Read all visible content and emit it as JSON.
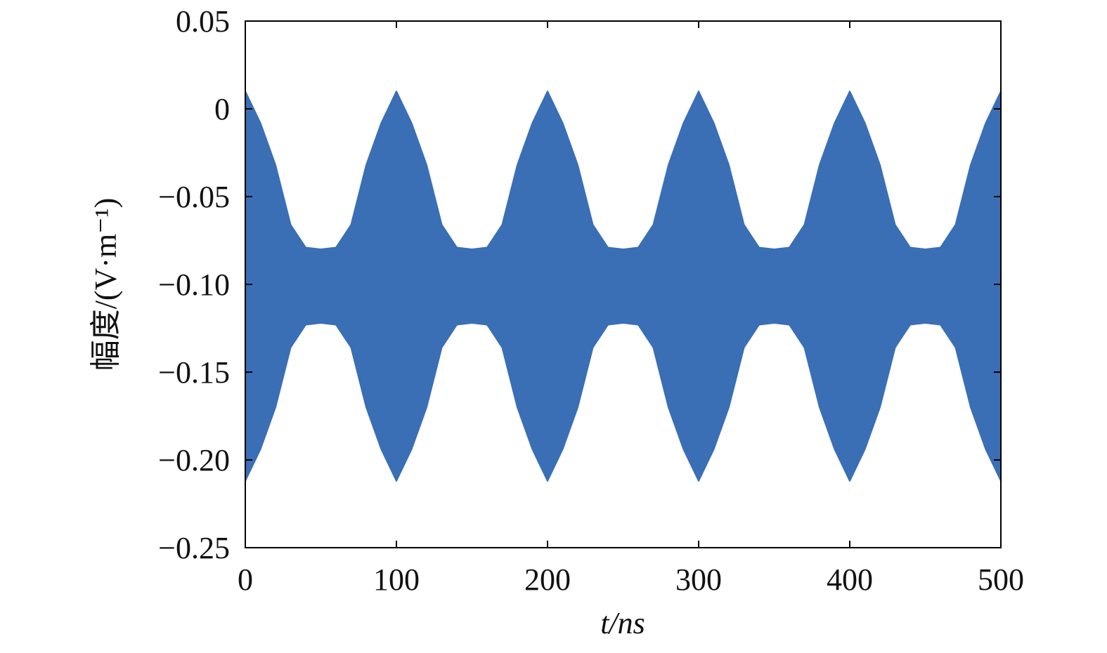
{
  "chart_data": {
    "type": "band",
    "x_label": "t/ns",
    "y_label": "幅度/(V·m⁻¹)",
    "color": "#3a6fb6",
    "x": [
      0,
      10,
      20,
      30,
      40,
      50,
      60,
      70,
      80,
      90,
      100,
      110,
      120,
      130,
      140,
      150,
      160,
      170,
      180,
      190,
      200,
      210,
      220,
      230,
      240,
      250,
      260,
      270,
      280,
      290,
      300,
      310,
      320,
      330,
      340,
      350,
      360,
      370,
      380,
      390,
      400,
      410,
      420,
      430,
      440,
      450,
      460,
      470,
      480,
      490,
      500
    ],
    "upper": [
      0.01,
      -0.008,
      -0.032,
      -0.066,
      -0.079,
      -0.08,
      -0.079,
      -0.066,
      -0.032,
      -0.008,
      0.01,
      -0.008,
      -0.032,
      -0.066,
      -0.079,
      -0.08,
      -0.079,
      -0.066,
      -0.032,
      -0.008,
      0.01,
      -0.008,
      -0.032,
      -0.066,
      -0.079,
      -0.08,
      -0.079,
      -0.066,
      -0.032,
      -0.008,
      0.01,
      -0.008,
      -0.032,
      -0.066,
      -0.079,
      -0.08,
      -0.079,
      -0.066,
      -0.032,
      -0.008,
      0.01,
      -0.008,
      -0.032,
      -0.066,
      -0.079,
      -0.08,
      -0.079,
      -0.066,
      -0.032,
      -0.008,
      0.01
    ],
    "lower": [
      -0.212,
      -0.194,
      -0.17,
      -0.136,
      -0.123,
      -0.122,
      -0.123,
      -0.136,
      -0.17,
      -0.194,
      -0.212,
      -0.194,
      -0.17,
      -0.136,
      -0.123,
      -0.122,
      -0.123,
      -0.136,
      -0.17,
      -0.194,
      -0.212,
      -0.194,
      -0.17,
      -0.136,
      -0.123,
      -0.122,
      -0.123,
      -0.136,
      -0.17,
      -0.194,
      -0.212,
      -0.194,
      -0.17,
      -0.136,
      -0.123,
      -0.122,
      -0.123,
      -0.136,
      -0.17,
      -0.194,
      -0.212,
      -0.194,
      -0.17,
      -0.136,
      -0.123,
      -0.122,
      -0.123,
      -0.136,
      -0.17,
      -0.194,
      -0.212
    ],
    "xlim": [
      0,
      500
    ],
    "xticks": [
      0,
      100,
      200,
      300,
      400,
      500
    ],
    "ylim": [
      -0.25,
      0.05
    ],
    "yticks": [
      {
        "value": -0.25,
        "label": "−0.25"
      },
      {
        "value": -0.2,
        "label": "−0.20"
      },
      {
        "value": -0.15,
        "label": "−0.15"
      },
      {
        "value": -0.1,
        "label": "−0.10"
      },
      {
        "value": -0.05,
        "label": "−0.05"
      },
      0,
      0.05
    ]
  }
}
